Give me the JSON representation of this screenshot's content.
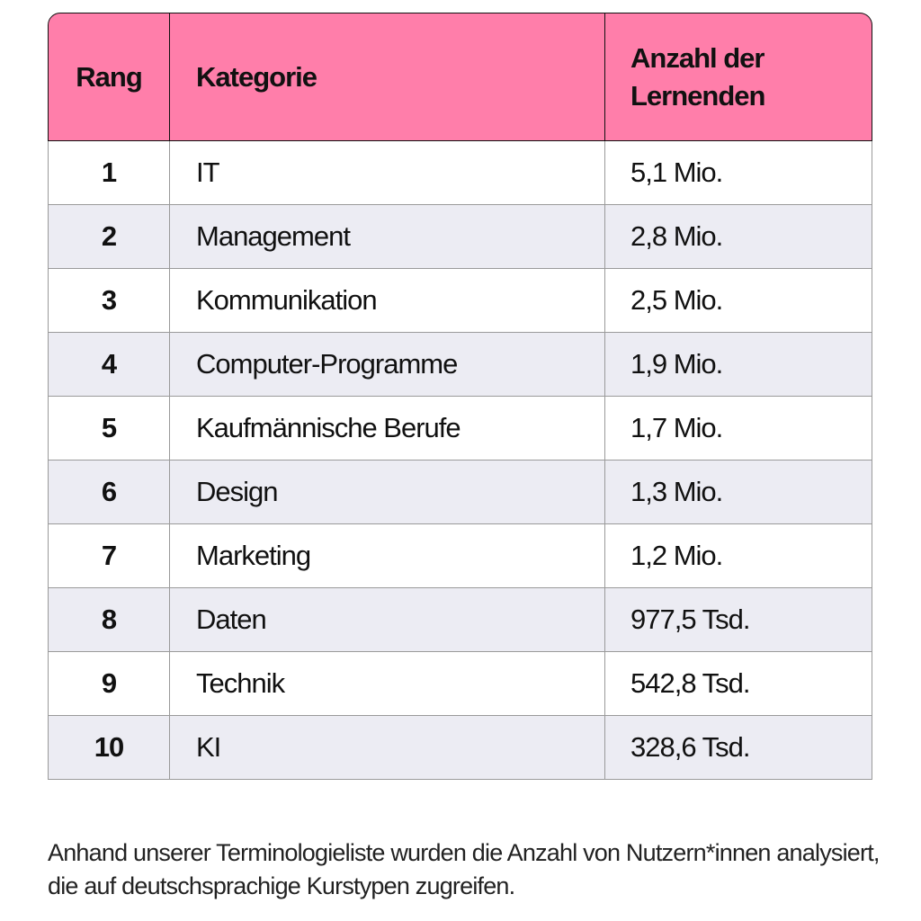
{
  "table": {
    "headers": {
      "rank": "Rang",
      "category": "Kategorie",
      "count": "Anzahl der Lernenden"
    },
    "rows": [
      {
        "rank": "1",
        "category": "IT",
        "count": "5,1 Mio."
      },
      {
        "rank": "2",
        "category": "Management",
        "count": "2,8 Mio."
      },
      {
        "rank": "3",
        "category": "Kommunikation",
        "count": "2,5 Mio."
      },
      {
        "rank": "4",
        "category": "Computer-Programme",
        "count": "1,9 Mio."
      },
      {
        "rank": "5",
        "category": "Kaufmännische Berufe",
        "count": "1,7 Mio."
      },
      {
        "rank": "6",
        "category": "Design",
        "count": "1,3 Mio."
      },
      {
        "rank": "7",
        "category": "Marketing",
        "count": "1,2 Mio."
      },
      {
        "rank": "8",
        "category": "Daten",
        "count": "977,5 Tsd."
      },
      {
        "rank": "9",
        "category": "Technik",
        "count": "542,8 Tsd."
      },
      {
        "rank": "10",
        "category": "KI",
        "count": "328,6 Tsd."
      }
    ]
  },
  "footnote": "Anhand unserer Terminologieliste wurden die Anzahl von Nutzern*innen analysiert, die auf deutschsprachige Kurstypen zugreifen.",
  "colors": {
    "header_background": "#ff7eaa",
    "stripe_background": "#ececf3"
  }
}
